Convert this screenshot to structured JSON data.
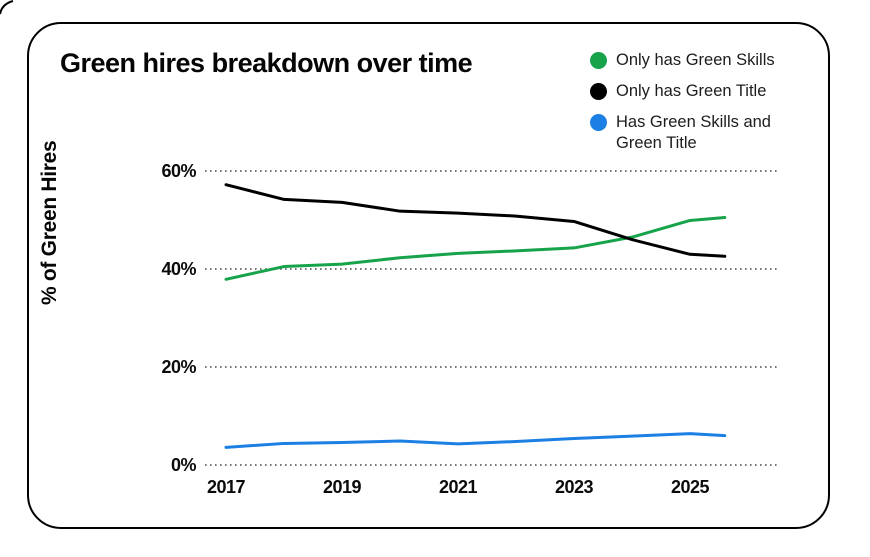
{
  "card": {
    "title": "Green hires breakdown over time"
  },
  "chart_data": {
    "type": "line",
    "title": "Green hires breakdown over time",
    "xlabel": "",
    "ylabel": "% of Green Hires",
    "ylim": [
      0,
      60
    ],
    "xlim": [
      2017,
      2025.7
    ],
    "grid": "horizontal dotted lines at 0%, 20%, 40%, 60%",
    "legend_position": "top-right",
    "x": [
      2017,
      2018,
      2019,
      2020,
      2021,
      2022,
      2023,
      2024,
      2025,
      2025.6
    ],
    "x_tick_years": [
      2017,
      2019,
      2021,
      2023,
      2025
    ],
    "x_tick_labels": [
      "2017",
      "2019",
      "2021",
      "2023",
      "2025"
    ],
    "y_tick_values": [
      60,
      40,
      20,
      0
    ],
    "y_tick_labels": [
      "60%",
      "40%",
      "20%",
      "0%"
    ],
    "series": [
      {
        "name": "Only has Green Skills",
        "color": "#16a34a",
        "values": [
          37.9,
          40.5,
          41.0,
          42.3,
          43.2,
          43.7,
          44.3,
          46.5,
          49.9,
          50.5
        ]
      },
      {
        "name": "Only has Green Title",
        "color": "#000000",
        "values": [
          57.2,
          54.2,
          53.6,
          51.8,
          51.4,
          50.8,
          49.7,
          46.0,
          43.0,
          42.6
        ]
      },
      {
        "name": "Has Green Skills and Green Title",
        "color": "#1b7fe4",
        "values": [
          3.6,
          4.4,
          4.6,
          4.9,
          4.3,
          4.8,
          5.4,
          5.9,
          6.4,
          6.0
        ]
      }
    ]
  }
}
